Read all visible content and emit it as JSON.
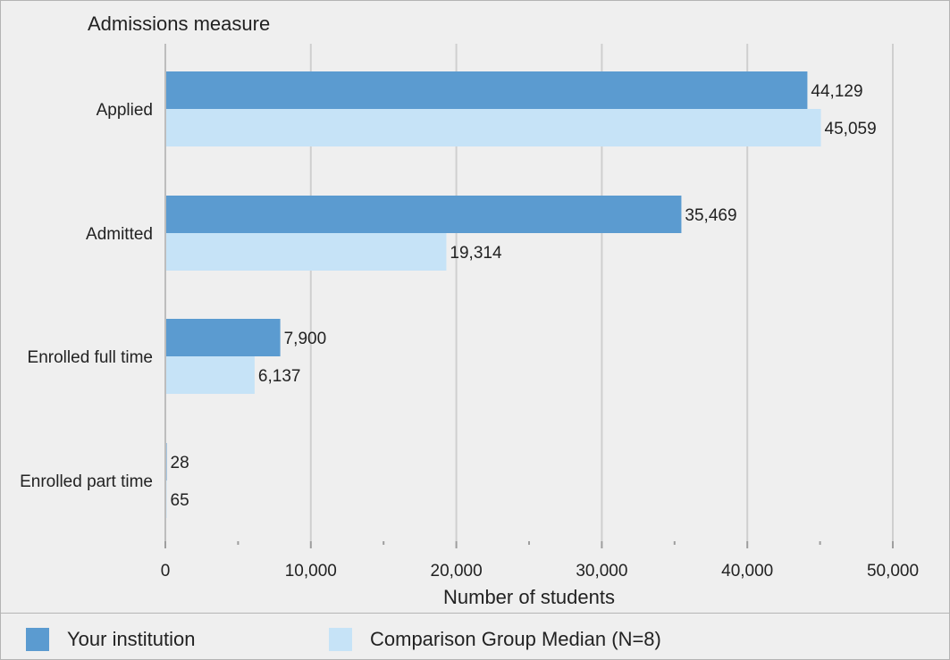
{
  "chart_data": {
    "type": "bar",
    "orientation": "horizontal",
    "title": "Admissions measure",
    "xlabel": "Number of students",
    "ylabel": "",
    "categories": [
      "Applied",
      "Admitted",
      "Enrolled full time",
      "Enrolled part time"
    ],
    "series": [
      {
        "name": "Your institution",
        "color": "#5b9bd0",
        "values": [
          44129,
          35469,
          7900,
          28
        ]
      },
      {
        "name": "Comparison Group Median (N=8)",
        "color": "#c6e3f7",
        "values": [
          45059,
          19314,
          6137,
          65
        ]
      }
    ],
    "data_labels": [
      [
        "44,129",
        "35,469",
        "7,900",
        "28"
      ],
      [
        "45,059",
        "19,314",
        "6,137",
        "65"
      ]
    ],
    "xlim": [
      0,
      50000
    ],
    "xticks": [
      0,
      10000,
      20000,
      30000,
      40000,
      50000
    ],
    "xtick_labels": [
      "0",
      "10,000",
      "20,000",
      "30,000",
      "40,000",
      "50,000"
    ],
    "grid": true,
    "legend_position": "bottom"
  }
}
